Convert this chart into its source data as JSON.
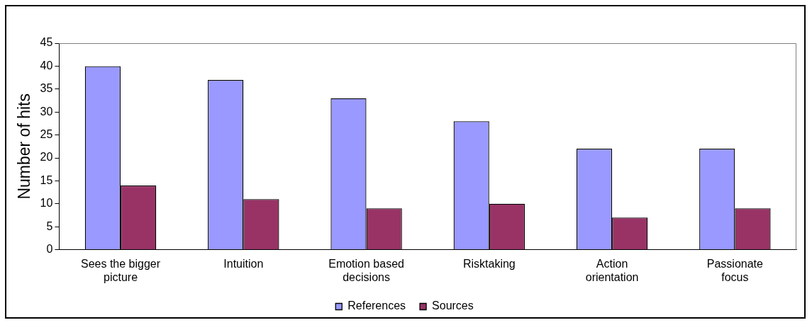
{
  "chart_data": {
    "type": "bar",
    "ylabel": "Number of hits",
    "categories": [
      "Sees the bigger picture",
      "Intuition",
      "Emotion based decisions",
      "Risktaking",
      "Action orientation",
      "Passionate focus"
    ],
    "series": [
      {
        "name": "References",
        "color": "#9999ff",
        "values": [
          40,
          37,
          33,
          28,
          22,
          22
        ]
      },
      {
        "name": "Sources",
        "color": "#993366",
        "values": [
          14,
          11,
          9,
          10,
          7,
          9
        ]
      }
    ],
    "ylim": [
      0,
      45
    ],
    "yticks": [
      0,
      5,
      10,
      15,
      20,
      25,
      30,
      35,
      40,
      45
    ],
    "grid": false,
    "legend": "bottom"
  }
}
